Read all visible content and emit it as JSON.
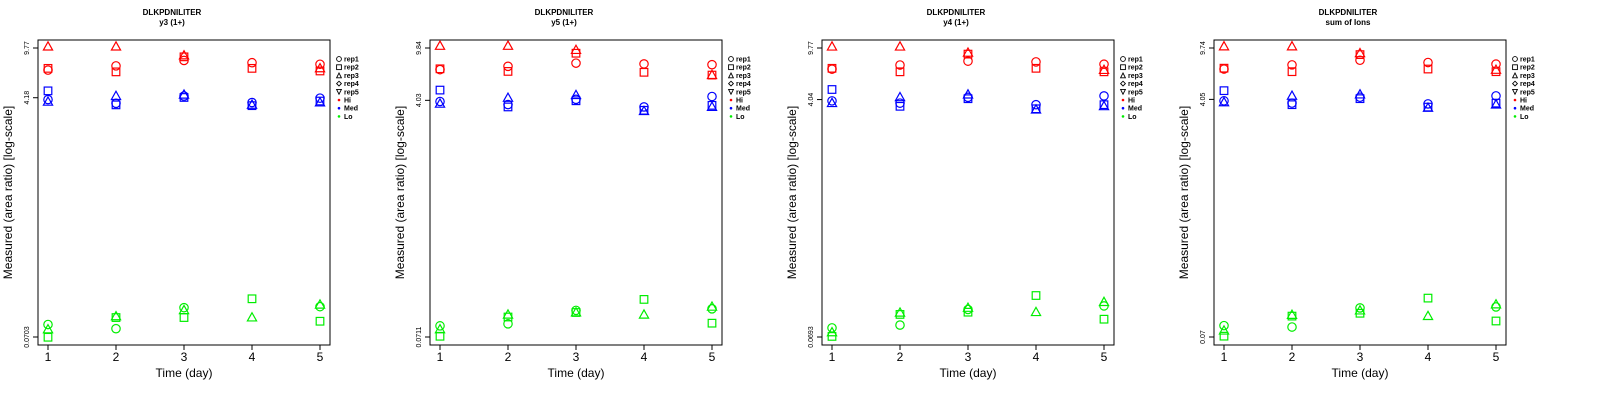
{
  "figure": {
    "y_axis_label": "Measured (area ratio) [log-scale]",
    "x_axis_label": "Time (day)",
    "legend": {
      "entries": [
        {
          "label": "rep1",
          "symbol": "circle"
        },
        {
          "label": "rep2",
          "symbol": "square"
        },
        {
          "label": "rep3",
          "symbol": "triangle"
        },
        {
          "label": "rep4",
          "symbol": "diamond"
        },
        {
          "label": "rep5",
          "symbol": "triangle-down"
        },
        {
          "label": "Hi",
          "color": "#ff0000"
        },
        {
          "label": "Med",
          "color": "#0000ff"
        },
        {
          "label": "Lo",
          "color": "#00ee00"
        }
      ]
    },
    "colors": {
      "Hi": "#ff0000",
      "Med": "#0000ff",
      "Lo": "#00ee00"
    }
  },
  "chart_data": [
    {
      "type": "scatter",
      "title": "DLKPDNILITER",
      "subtitle": "y3 (1+)",
      "xlabel": "Time (day)",
      "ylabel": "Measured (area ratio) [log-scale]",
      "x": [
        1,
        2,
        3,
        4,
        5
      ],
      "yscale": "log",
      "ylim": [
        0.0703,
        9.77
      ],
      "yticks": [
        0.0703,
        4.18,
        9.77
      ],
      "ytick_labels": [
        "0.0703",
        "4.18",
        "9.77"
      ],
      "series": [
        {
          "group": "Hi",
          "rep": "rep1",
          "values": [
            6.7,
            7.2,
            7.9,
            7.6,
            7.4
          ]
        },
        {
          "group": "Hi",
          "rep": "rep2",
          "values": [
            6.9,
            6.5,
            8.4,
            6.9,
            6.6
          ]
        },
        {
          "group": "Hi",
          "rep": "rep3",
          "values": [
            10.0,
            10.0,
            8.6,
            null,
            6.9
          ]
        },
        {
          "group": "Med",
          "rep": "rep1",
          "values": [
            4.05,
            3.8,
            4.3,
            3.85,
            4.15
          ]
        },
        {
          "group": "Med",
          "rep": "rep2",
          "values": [
            4.7,
            3.7,
            4.2,
            3.65,
            3.95
          ]
        },
        {
          "group": "Med",
          "rep": "rep3",
          "values": [
            3.9,
            4.3,
            4.4,
            3.7,
            3.85
          ]
        },
        {
          "group": "Lo",
          "rep": "rep1",
          "values": [
            0.087,
            0.081,
            0.116,
            null,
            0.118
          ]
        },
        {
          "group": "Lo",
          "rep": "rep2",
          "values": [
            0.07,
            0.098,
            0.098,
            0.135,
            0.092
          ]
        },
        {
          "group": "Lo",
          "rep": "rep3",
          "values": [
            0.08,
            0.1,
            0.111,
            0.098,
            0.122
          ]
        }
      ]
    },
    {
      "type": "scatter",
      "title": "DLKPDNILITER",
      "subtitle": "y5 (1+)",
      "xlabel": "Time (day)",
      "ylabel": "Measured (area ratio) [log-scale]",
      "x": [
        1,
        2,
        3,
        4,
        5
      ],
      "yscale": "log",
      "ylim": [
        0.0711,
        9.84
      ],
      "yticks": [
        0.0711,
        4.03,
        9.84
      ],
      "ytick_labels": [
        "0.0711",
        "4.03",
        "9.84"
      ],
      "series": [
        {
          "group": "Hi",
          "rep": "rep1",
          "values": [
            6.8,
            7.2,
            7.6,
            7.5,
            7.4
          ]
        },
        {
          "group": "Hi",
          "rep": "rep2",
          "values": [
            6.9,
            6.6,
            9.0,
            6.5,
            6.2
          ]
        },
        {
          "group": "Hi",
          "rep": "rep3",
          "values": [
            10.2,
            10.2,
            9.5,
            null,
            6.2
          ]
        },
        {
          "group": "Med",
          "rep": "rep1",
          "values": [
            3.95,
            3.75,
            4.1,
            3.6,
            4.3
          ]
        },
        {
          "group": "Med",
          "rep": "rep2",
          "values": [
            4.8,
            3.6,
            4.0,
            3.4,
            3.7
          ]
        },
        {
          "group": "Med",
          "rep": "rep3",
          "values": [
            3.8,
            4.2,
            4.4,
            3.35,
            3.6
          ]
        },
        {
          "group": "Lo",
          "rep": "rep1",
          "values": [
            0.086,
            0.089,
            0.112,
            null,
            0.115
          ]
        },
        {
          "group": "Lo",
          "rep": "rep2",
          "values": [
            0.072,
            0.1,
            0.108,
            0.135,
            0.09
          ]
        },
        {
          "group": "Lo",
          "rep": "rep3",
          "values": [
            0.081,
            0.104,
            0.108,
            0.104,
            0.119
          ]
        }
      ]
    },
    {
      "type": "scatter",
      "title": "DLKPDNILITER",
      "subtitle": "y4 (1+)",
      "xlabel": "Time (day)",
      "ylabel": "Measured (area ratio) [log-scale]",
      "x": [
        1,
        2,
        3,
        4,
        5
      ],
      "yscale": "log",
      "ylim": [
        0.0693,
        9.77
      ],
      "yticks": [
        0.0693,
        4.04,
        9.77
      ],
      "ytick_labels": [
        "0.0693",
        "4.04",
        "9.77"
      ],
      "series": [
        {
          "group": "Hi",
          "rep": "rep1",
          "values": [
            6.8,
            7.3,
            7.8,
            7.7,
            7.4
          ]
        },
        {
          "group": "Hi",
          "rep": "rep2",
          "values": [
            6.9,
            6.5,
            8.8,
            6.9,
            6.5
          ]
        },
        {
          "group": "Hi",
          "rep": "rep3",
          "values": [
            10.0,
            10.0,
            9.0,
            null,
            6.7
          ]
        },
        {
          "group": "Med",
          "rep": "rep1",
          "values": [
            3.95,
            3.8,
            4.2,
            3.7,
            4.3
          ]
        },
        {
          "group": "Med",
          "rep": "rep2",
          "values": [
            4.8,
            3.6,
            4.1,
            3.45,
            3.7
          ]
        },
        {
          "group": "Med",
          "rep": "rep3",
          "values": [
            3.8,
            4.2,
            4.4,
            3.4,
            3.6
          ]
        },
        {
          "group": "Lo",
          "rep": "rep1",
          "values": [
            0.081,
            0.085,
            0.111,
            null,
            0.118
          ]
        },
        {
          "group": "Lo",
          "rep": "rep2",
          "values": [
            0.07,
            0.102,
            0.106,
            0.141,
            0.094
          ]
        },
        {
          "group": "Lo",
          "rep": "rep3",
          "values": [
            0.075,
            0.105,
            0.114,
            0.106,
            0.126
          ]
        }
      ]
    },
    {
      "type": "scatter",
      "title": "DLKPDNILITER",
      "subtitle": "sum of Ions",
      "xlabel": "Time (day)",
      "ylabel": "Measured (area ratio) [log-scale]",
      "x": [
        1,
        2,
        3,
        4,
        5
      ],
      "yscale": "log",
      "ylim": [
        0.07,
        9.74
      ],
      "yticks": [
        0.07,
        4.05,
        9.74
      ],
      "ytick_labels": [
        "0.07",
        "4.05",
        "9.74"
      ],
      "series": [
        {
          "group": "Hi",
          "rep": "rep1",
          "values": [
            6.8,
            7.3,
            7.9,
            7.6,
            7.4
          ]
        },
        {
          "group": "Hi",
          "rep": "rep2",
          "values": [
            6.9,
            6.5,
            8.7,
            6.8,
            6.5
          ]
        },
        {
          "group": "Hi",
          "rep": "rep3",
          "values": [
            10.0,
            10.0,
            8.9,
            null,
            6.7
          ]
        },
        {
          "group": "Med",
          "rep": "rep1",
          "values": [
            3.95,
            3.8,
            4.2,
            3.75,
            4.3
          ]
        },
        {
          "group": "Med",
          "rep": "rep2",
          "values": [
            4.7,
            3.7,
            4.1,
            3.55,
            3.8
          ]
        },
        {
          "group": "Med",
          "rep": "rep3",
          "values": [
            3.85,
            4.3,
            4.4,
            3.5,
            3.7
          ]
        },
        {
          "group": "Lo",
          "rep": "rep1",
          "values": [
            0.085,
            0.083,
            0.115,
            null,
            0.117
          ]
        },
        {
          "group": "Lo",
          "rep": "rep2",
          "values": [
            0.071,
            0.1,
            0.105,
            0.136,
            0.092
          ]
        },
        {
          "group": "Lo",
          "rep": "rep3",
          "values": [
            0.078,
            0.102,
            0.11,
            0.1,
            0.122
          ]
        }
      ]
    }
  ]
}
